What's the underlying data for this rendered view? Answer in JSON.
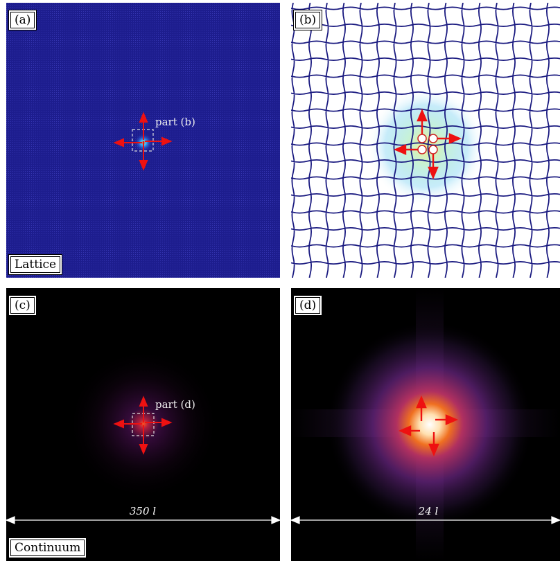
{
  "panels": {
    "a": {
      "tag": "(a)",
      "zoom_label": "part (b)",
      "bottom_label": "Lattice"
    },
    "b": {
      "tag": "(b)"
    },
    "c": {
      "tag": "(c)",
      "zoom_label": "part (d)",
      "bottom_label": "Continuum",
      "dimension": "350 l"
    },
    "d": {
      "tag": "(d)",
      "dimension": "24 l"
    }
  },
  "colors": {
    "lattice_bg": "#1a1a8c",
    "lattice_line": "#1a1a80",
    "arrow": "#ee1111",
    "continuum_bg": "#000000"
  }
}
